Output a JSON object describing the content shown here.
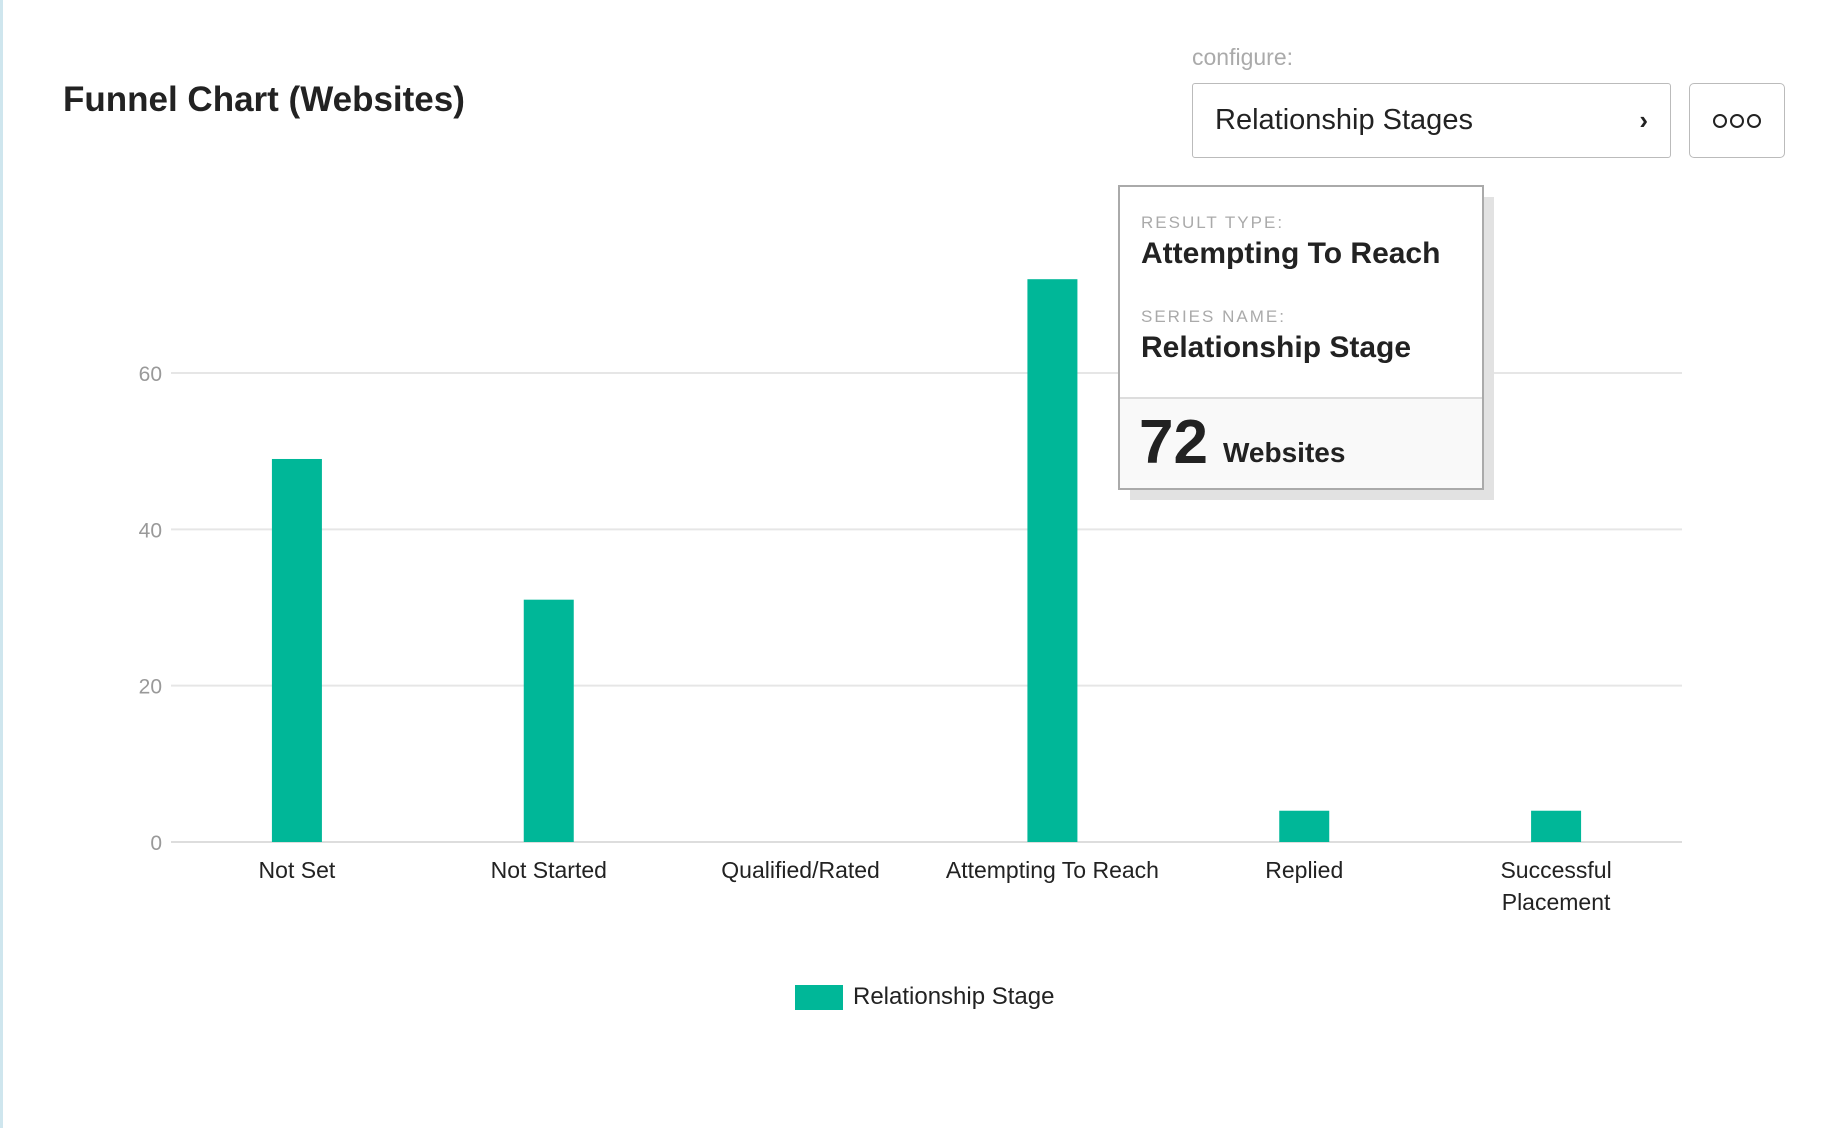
{
  "header": {
    "title": "Funnel Chart (Websites)"
  },
  "configure": {
    "label": "configure:",
    "selected": "Relationship Stages",
    "chevron_icon": "chevron-right-icon",
    "more_icon": "more-options-icon"
  },
  "chart_data": {
    "type": "bar",
    "categories": [
      "Not Set",
      "Not Started",
      "Qualified/Rated",
      "Attempting To Reach",
      "Replied",
      "Successful Placement"
    ],
    "series": [
      {
        "name": "Relationship Stage",
        "values": [
          49,
          31,
          0,
          72,
          4,
          4
        ],
        "color": "#00b798"
      }
    ],
    "yticks": [
      0,
      20,
      40,
      60
    ],
    "ylim": [
      0,
      72
    ],
    "grid": true,
    "legend": "bottom-center"
  },
  "tooltip": {
    "result_type_label": "RESULT TYPE:",
    "result_type": "Attempting To Reach",
    "series_name_label": "SERIES NAME:",
    "series_name": "Relationship Stage",
    "value": "72",
    "unit": "Websites"
  },
  "legend": {
    "label": "Relationship Stage"
  }
}
